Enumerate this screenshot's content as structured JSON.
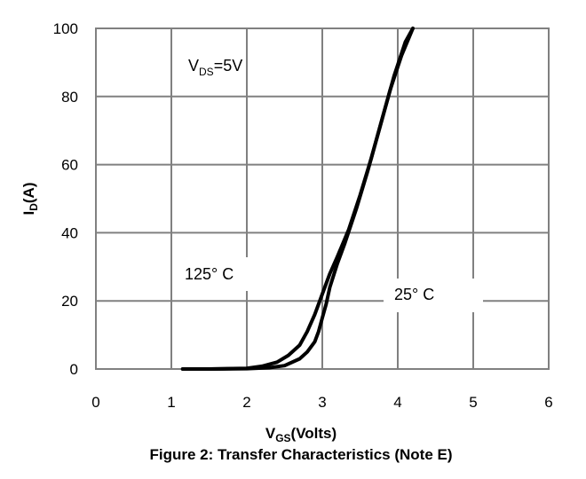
{
  "chart_data": {
    "type": "line",
    "title": "Figure 2: Transfer Characteristics (Note E)",
    "xlabel": {
      "main": "V",
      "sub": "GS",
      "rest": "(Volts)"
    },
    "ylabel": {
      "main": "I",
      "sub": "D",
      "rest": "(A)"
    },
    "xlim": [
      0,
      6
    ],
    "ylim": [
      0,
      100
    ],
    "xticks": [
      0,
      1,
      2,
      3,
      4,
      5,
      6
    ],
    "yticks": [
      0,
      20,
      40,
      60,
      80,
      100
    ],
    "grid": true,
    "annotations": [
      {
        "text_main": "V",
        "text_sub": "DS",
        "text_rest": "=5V"
      },
      {
        "text": "125° C"
      },
      {
        "text": "25° C"
      }
    ],
    "series": [
      {
        "name": "125° C",
        "x": [
          1.15,
          1.5,
          2.0,
          2.2,
          2.4,
          2.55,
          2.7,
          2.8,
          2.9,
          3.0,
          3.1,
          3.2,
          3.35,
          3.5,
          3.65,
          3.8,
          3.95,
          4.1,
          4.2
        ],
        "y": [
          0,
          0,
          0.2,
          0.8,
          2,
          4,
          7,
          11,
          16,
          22,
          28,
          33,
          41,
          51,
          62,
          74,
          86,
          96,
          100
        ]
      },
      {
        "name": "25° C",
        "x": [
          1.15,
          1.5,
          2.0,
          2.3,
          2.5,
          2.7,
          2.8,
          2.9,
          2.95,
          3.0,
          3.05,
          3.1,
          3.2,
          3.3,
          3.45,
          3.6,
          3.75,
          3.9,
          4.05,
          4.2
        ],
        "y": [
          0,
          0,
          0.1,
          0.4,
          1,
          3,
          5,
          8,
          11,
          15,
          19,
          24,
          31,
          37,
          47,
          58,
          70,
          82,
          92,
          100
        ]
      }
    ]
  }
}
